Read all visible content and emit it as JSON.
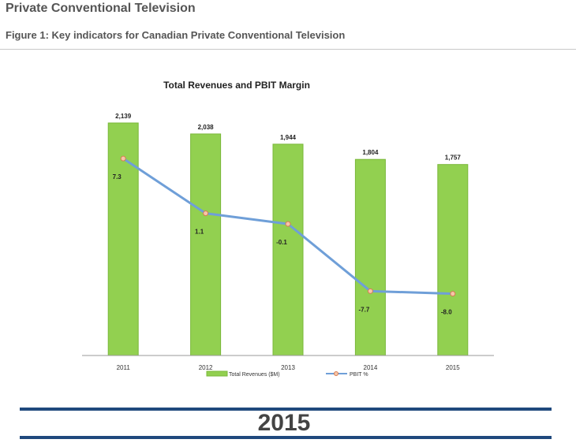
{
  "page": {
    "section_title": "Private Conventional Television",
    "figure_caption": "Figure 1: Key indicators for Canadian Private Conventional Television",
    "banner_year": "2015"
  },
  "colors": {
    "bar": "#92d050",
    "bar_edge": "#7ab83a",
    "line": "#6f9fd8",
    "marker_fill": "#f5c6a8",
    "marker_edge": "#d77b52",
    "banner": "#1f497d"
  },
  "chart_data": {
    "type": "bar",
    "title": "Total Revenues and PBIT Margin",
    "categories": [
      "2011",
      "2012",
      "2013",
      "2014",
      "2015"
    ],
    "series": [
      {
        "name": "Total Revenues ($M)",
        "type": "bar",
        "values": [
          2139,
          2038,
          1944,
          1804,
          1757
        ],
        "labels": [
          "2,139",
          "2,038",
          "1,944",
          "1,804",
          "1,757"
        ]
      },
      {
        "name": "PBIT %",
        "type": "line",
        "values": [
          7.3,
          1.1,
          -0.1,
          -7.7,
          -8.0
        ],
        "labels": [
          "7.3",
          "1.1",
          "-0.1",
          "-7.7",
          "-8.0"
        ]
      }
    ],
    "legend_position": "bottom",
    "grid": false
  }
}
